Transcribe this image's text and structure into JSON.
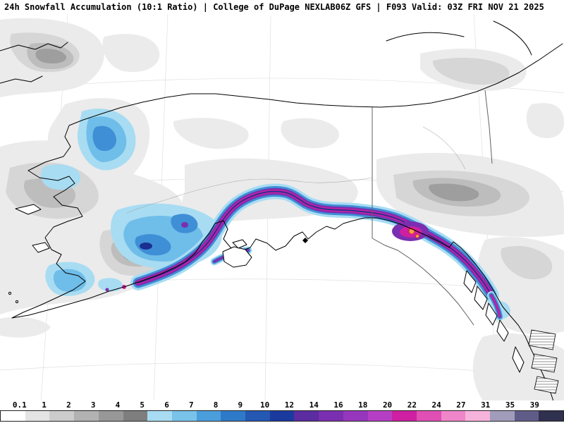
{
  "header": {
    "left_title": "24h Snowfall Accumulation (10:1 Ratio) | College of DuPage NEXLAB",
    "right_title": "06Z GFS | F093 Valid: 03Z FRI NOV 21 2025"
  },
  "chart_data": {
    "type": "heatmap",
    "title": "24h Snowfall Accumulation (10:1 Ratio)",
    "source": "College of DuPage NEXLAB",
    "model_run": "06Z GFS",
    "forecast_hour": "F093",
    "valid_time": "03Z FRI NOV 21 2025",
    "colorbar": {
      "tick_labels": [
        "0.1",
        "1",
        "2",
        "3",
        "4",
        "5",
        "6",
        "7",
        "8",
        "9",
        "10",
        "12",
        "14",
        "16",
        "18",
        "20",
        "22",
        "24",
        "27",
        "31",
        "35",
        "39"
      ],
      "cell_colors": [
        "#ffffff",
        "#e4e4e4",
        "#cccccc",
        "#b2b2b2",
        "#989898",
        "#7e7e7e",
        "#a8dcf2",
        "#79c2ea",
        "#4a9edc",
        "#2f7ac8",
        "#2458b2",
        "#1b3a9e",
        "#5b2da0",
        "#7a2fb0",
        "#9636bd",
        "#b53fc4",
        "#cf1fa2",
        "#e04fb4",
        "#ef86ca",
        "#f6b3dc",
        "#a09cba",
        "#5f5d88",
        "#30304f"
      ]
    }
  },
  "legend": {
    "ticks": [
      "0.1",
      "1",
      "2",
      "3",
      "4",
      "5",
      "6",
      "7",
      "8",
      "9",
      "10",
      "12",
      "14",
      "16",
      "18",
      "20",
      "22",
      "24",
      "27",
      "31",
      "35",
      "39"
    ],
    "colors": [
      "#ffffff",
      "#e4e4e4",
      "#cccccc",
      "#b2b2b2",
      "#989898",
      "#7e7e7e",
      "#a8dcf2",
      "#79c2ea",
      "#4a9edc",
      "#2f7ac8",
      "#2458b2",
      "#1b3a9e",
      "#5b2da0",
      "#7a2fb0",
      "#9636bd",
      "#b53fc4",
      "#cf1fa2",
      "#e04fb4",
      "#ef86ca",
      "#f6b3dc",
      "#a09cba",
      "#5f5d88",
      "#30304f"
    ]
  },
  "map": {
    "colors": {
      "g1": "#ebebeb",
      "g2": "#d6d6d6",
      "g3": "#bdbdbd",
      "g4": "#9e9e9e",
      "b1": "#a8dcf2",
      "b2": "#6fbde9",
      "b3": "#3f8fd6",
      "navy": "#1b2f91",
      "vio": "#7a2fb0",
      "mag": "#cf1fa2",
      "org": "#f2a243",
      "red": "#cf2f2f",
      "coast": "#000000",
      "border": "#606060",
      "grid": "#cccccc",
      "river": "#9a9a9a"
    }
  }
}
